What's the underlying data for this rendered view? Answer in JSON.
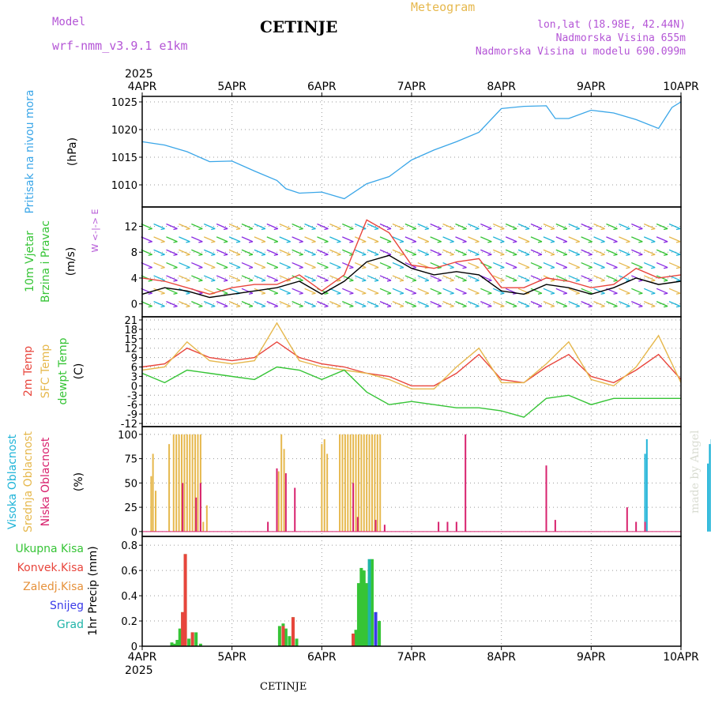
{
  "header": {
    "model_label": "Model",
    "model_name": "wrf-nmm_v3.9.1 e1km",
    "title": "CETINJE",
    "meteogram_label": "Meteogram",
    "lonlat": "lon,lat (18.98E, 42.44N)",
    "elevation": "Nadmorska Visina 655m",
    "model_elevation": "Nadmorska Visina u modelu 690.099m",
    "bottom_title": "CETINJE",
    "watermark": "made by Angel"
  },
  "chart_data": [
    {
      "type": "line",
      "panel": "pressure",
      "ylabel": [
        "Pritisak na nivou mora",
        "(hPa)"
      ],
      "ylim": [
        1006,
        1026
      ],
      "yticks": [
        1010,
        1015,
        1020,
        1025
      ],
      "top_axis": {
        "year": "2025",
        "labels": [
          "4APR",
          "5APR",
          "6APR",
          "7APR",
          "8APR",
          "9APR",
          "10APR"
        ]
      },
      "x_days": [
        0,
        0.25,
        0.5,
        0.75,
        1,
        1.25,
        1.5,
        1.6,
        1.75,
        2,
        2.25,
        2.5,
        2.75,
        3,
        3.25,
        3.5,
        3.75,
        4,
        4.25,
        4.5,
        4.6,
        4.75,
        5,
        5.25,
        5.5,
        5.75,
        5.9,
        6
      ],
      "values": [
        1017.8,
        1017.2,
        1016.0,
        1014.2,
        1014.3,
        1012.5,
        1010.8,
        1009.3,
        1008.5,
        1008.7,
        1007.5,
        1010.2,
        1011.5,
        1014.5,
        1016.3,
        1017.8,
        1019.5,
        1023.8,
        1024.2,
        1024.3,
        1022.0,
        1022.0,
        1023.5,
        1023.0,
        1021.8,
        1020.2,
        1024.0,
        1025.0
      ],
      "color": "#3aa6e8"
    },
    {
      "type": "line",
      "panel": "wind",
      "ylabel": [
        "10m Vjetar",
        "Brzina i Pravac",
        "(m/s)"
      ],
      "compass_label": "W <-|-> E",
      "ylim": [
        -2,
        15
      ],
      "yticks": [
        0,
        4,
        8,
        12
      ],
      "x_days": [
        0,
        0.25,
        0.5,
        0.75,
        1,
        1.25,
        1.5,
        1.75,
        2,
        2.25,
        2.5,
        2.75,
        3,
        3.25,
        3.5,
        3.75,
        4,
        4.25,
        4.5,
        4.75,
        5,
        5.25,
        5.5,
        5.75,
        6
      ],
      "series": [
        {
          "values": [
            1.5,
            2.5,
            2.0,
            1.0,
            1.5,
            2.0,
            2.5,
            3.5,
            1.5,
            3.5,
            6.5,
            7.5,
            5.5,
            4.5,
            5.0,
            4.5,
            2.0,
            1.5,
            3.0,
            2.5,
            1.5,
            2.5,
            4.0,
            3.0,
            3.5
          ],
          "color": "#000000"
        },
        {
          "values": [
            4.0,
            3.5,
            2.5,
            1.5,
            2.5,
            3.0,
            3.0,
            4.5,
            2.0,
            4.5,
            13.0,
            11.0,
            6.0,
            5.5,
            6.5,
            7.0,
            2.5,
            2.5,
            4.0,
            3.5,
            2.5,
            3.0,
            5.5,
            4.0,
            4.5
          ],
          "color": "#e8453c"
        }
      ]
    },
    {
      "type": "line",
      "panel": "temperature",
      "ylabel": [
        "2m Temp",
        "SFC Temp",
        "dewpt Temp",
        "(C)"
      ],
      "ylim": [
        -13,
        22
      ],
      "yticks": [
        -12,
        -9,
        -6,
        -3,
        0,
        3,
        6,
        9,
        12,
        15,
        18,
        21
      ],
      "x_days": [
        0,
        0.25,
        0.5,
        0.75,
        1,
        1.25,
        1.5,
        1.75,
        2,
        2.25,
        2.5,
        2.75,
        3,
        3.25,
        3.5,
        3.75,
        4,
        4.25,
        4.5,
        4.75,
        5,
        5.25,
        5.5,
        5.75,
        6
      ],
      "series": [
        {
          "name": "2m Temp",
          "values": [
            6,
            7,
            12,
            9,
            8,
            9,
            14,
            9,
            7,
            6,
            4,
            3,
            0,
            0,
            4,
            10,
            2,
            1,
            6,
            10,
            3,
            1,
            5,
            10,
            2
          ],
          "color": "#e8453c"
        },
        {
          "name": "SFC Temp",
          "values": [
            5,
            6,
            14,
            8,
            7,
            8,
            20,
            8,
            6,
            5,
            4,
            2,
            -1,
            -1,
            6,
            12,
            1,
            1,
            7,
            14,
            2,
            0,
            6,
            16,
            1
          ],
          "color": "#e6b84d"
        },
        {
          "name": "dewpt Temp",
          "values": [
            4,
            1,
            5,
            4,
            3,
            2,
            6,
            5,
            2,
            5,
            -2,
            -6,
            -5,
            -6,
            -7,
            -7,
            -8,
            -10,
            -4,
            -3,
            -6,
            -4,
            -4,
            -4,
            -4
          ],
          "color": "#36c436"
        }
      ]
    },
    {
      "type": "bar",
      "panel": "cloud",
      "ylabel": [
        "Visoka Oblacnost",
        "Srednja Oblacnost",
        "Niska Oblacnost",
        "(%)"
      ],
      "ylim": [
        -5,
        108
      ],
      "yticks": [
        0,
        25,
        50,
        75,
        100
      ],
      "series": [
        {
          "name": "Visoka Oblacnost",
          "color": "#20b4d8",
          "x": [
            5.6,
            5.62,
            6.3,
            6.32,
            6.34,
            6.36
          ],
          "values": [
            80,
            95,
            70,
            90,
            95,
            90
          ]
        },
        {
          "name": "Srednja Oblacnost",
          "color": "#e6b84d",
          "x": [
            0.1,
            0.12,
            0.15,
            0.3,
            0.35,
            0.38,
            0.41,
            0.44,
            0.47,
            0.5,
            0.53,
            0.56,
            0.59,
            0.62,
            0.65,
            0.68,
            0.72,
            0.75,
            1.5,
            1.52,
            1.55,
            1.58,
            1.62,
            1.65,
            2.0,
            2.03,
            2.06,
            2.2,
            2.23,
            2.26,
            2.29,
            2.32,
            2.35,
            2.38,
            2.41,
            2.44,
            2.47,
            2.5,
            2.53,
            2.56,
            2.59,
            2.62,
            2.65
          ],
          "values": [
            57,
            80,
            42,
            90,
            100,
            100,
            100,
            100,
            100,
            100,
            100,
            100,
            100,
            100,
            100,
            10,
            27,
            0,
            60,
            62,
            100,
            85,
            0,
            0,
            90,
            95,
            80,
            100,
            100,
            100,
            100,
            100,
            100,
            100,
            100,
            100,
            100,
            100,
            100,
            100,
            100,
            100,
            100
          ]
        },
        {
          "name": "Niska Oblacnost",
          "color": "#d8226e",
          "x": [
            0.45,
            0.6,
            0.65,
            1.4,
            1.5,
            1.6,
            1.7,
            2.35,
            2.4,
            2.6,
            2.7,
            3.3,
            3.4,
            3.5,
            3.6,
            4.5,
            4.6,
            5.4,
            5.5,
            5.6
          ],
          "values": [
            50,
            35,
            50,
            10,
            65,
            60,
            45,
            50,
            15,
            12,
            7,
            10,
            10,
            10,
            100,
            68,
            12,
            25,
            10,
            10
          ]
        }
      ]
    },
    {
      "type": "bar",
      "panel": "precip",
      "ylabel": [
        "Ukupna Kisa",
        "Konvek.Kisa",
        "Zaledj.Kisa",
        "Snijeg",
        "Grad",
        "1hr Precip (mm)"
      ],
      "ylim": [
        0,
        0.87
      ],
      "yticks": [
        0,
        0.2,
        0.4,
        0.6,
        0.8
      ],
      "bottom_axis": {
        "labels": [
          "4APR",
          "5APR",
          "6APR",
          "7APR",
          "8APR",
          "9APR",
          "10APR"
        ],
        "year": "2025"
      },
      "series": [
        {
          "name": "Ukupna Kisa",
          "color": "#36c436",
          "x": [
            0.33,
            0.36,
            0.39,
            0.42,
            0.45,
            0.48,
            0.52,
            0.56,
            0.6,
            0.65,
            1.53,
            1.57,
            1.6,
            1.64,
            1.68,
            1.72,
            2.35,
            2.38,
            2.41,
            2.44,
            2.47,
            2.5,
            2.53,
            2.56,
            2.6,
            2.64
          ],
          "values": [
            0.03,
            0.02,
            0.05,
            0.14,
            0.27,
            0.73,
            0.06,
            0.11,
            0.11,
            0.02,
            0.16,
            0.18,
            0.14,
            0.08,
            0.23,
            0.06,
            0.1,
            0.13,
            0.5,
            0.62,
            0.6,
            0.5,
            0.55,
            0.69,
            0.27,
            0.2
          ]
        },
        {
          "name": "Konvek.Kisa",
          "color": "#e8453c",
          "x": [
            0.45,
            0.48,
            0.56,
            1.57,
            1.68,
            2.35
          ],
          "values": [
            0.27,
            0.73,
            0.11,
            0.16,
            0.23,
            0.1
          ]
        },
        {
          "name": "Zaledj.Kisa",
          "color": "#e6923c",
          "x": [],
          "values": []
        },
        {
          "name": "Snijeg",
          "color": "#3a3ae8",
          "x": [
            2.6
          ],
          "values": [
            0.27
          ]
        },
        {
          "name": "Grad",
          "color": "#20b4a8",
          "x": [
            2.53
          ],
          "values": [
            0.69
          ]
        }
      ]
    }
  ]
}
